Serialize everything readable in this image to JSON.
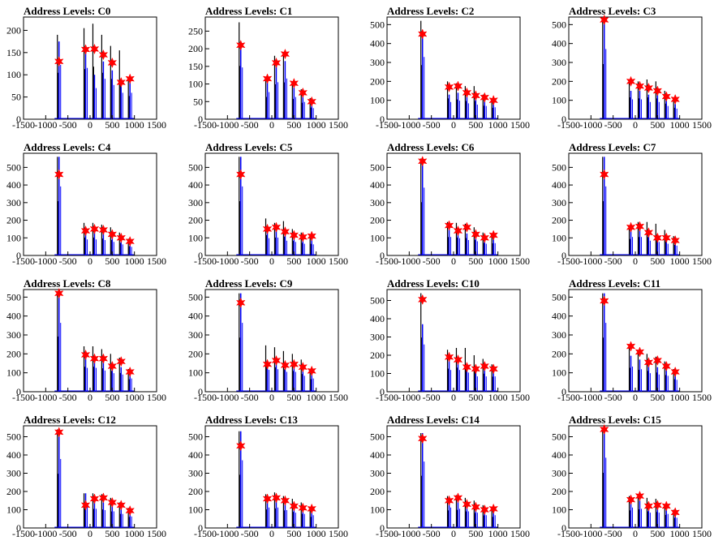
{
  "colors": {
    "histogram_black": "#000000",
    "histogram_blue": "#0000ff",
    "marker": "#ff0000"
  },
  "chart_data": [
    {
      "type": "bar",
      "title": "Address Levels: C0",
      "xlim": [
        -1500,
        1500
      ],
      "ylim": [
        0,
        230
      ],
      "xticks": [
        -1500,
        -1000,
        -500,
        0,
        500,
        1000,
        1500
      ],
      "yticks": [
        0,
        50,
        100,
        150,
        200
      ],
      "peaks_x": [
        -700,
        -100,
        100,
        300,
        500,
        700,
        900
      ],
      "black_heights": [
        190,
        205,
        215,
        190,
        165,
        155,
        95
      ],
      "blue_heights": [
        175,
        165,
        100,
        130,
        110,
        85,
        85
      ],
      "markers_y": [
        130,
        157,
        158,
        145,
        127,
        83,
        91
      ]
    },
    {
      "type": "bar",
      "title": "Address Levels: C1",
      "xlim": [
        -1500,
        1500
      ],
      "ylim": [
        0,
        290
      ],
      "xticks": [
        -1500,
        -1000,
        -500,
        0,
        500,
        1000,
        1500
      ],
      "yticks": [
        0,
        50,
        100,
        150,
        200,
        250
      ],
      "peaks_x": [
        -700,
        -100,
        100,
        300,
        500,
        700,
        900
      ],
      "black_heights": [
        275,
        115,
        180,
        190,
        105,
        85,
        60
      ],
      "blue_heights": [
        210,
        110,
        150,
        165,
        90,
        70,
        45
      ],
      "markers_y": [
        210,
        115,
        160,
        185,
        102,
        75,
        50
      ]
    },
    {
      "type": "bar",
      "title": "Address Levels: C2",
      "xlim": [
        -1500,
        1500
      ],
      "ylim": [
        0,
        540
      ],
      "xticks": [
        -1500,
        -1000,
        -500,
        0,
        500,
        1000,
        1500
      ],
      "yticks": [
        0,
        100,
        200,
        300,
        400,
        500
      ],
      "peaks_x": [
        -700,
        -100,
        100,
        300,
        500,
        700,
        900
      ],
      "black_heights": [
        520,
        200,
        190,
        175,
        175,
        130,
        110
      ],
      "blue_heights": [
        470,
        130,
        140,
        120,
        110,
        100,
        90
      ],
      "markers_y": [
        450,
        170,
        175,
        140,
        125,
        115,
        100
      ]
    },
    {
      "type": "bar",
      "title": "Address Levels: C3",
      "xlim": [
        -1500,
        1500
      ],
      "ylim": [
        0,
        540
      ],
      "xticks": [
        -1500,
        -1000,
        -500,
        0,
        500,
        1000,
        1500
      ],
      "yticks": [
        0,
        100,
        200,
        300,
        400,
        500
      ],
      "peaks_x": [
        -700,
        -100,
        100,
        300,
        500,
        700,
        900
      ],
      "black_heights": [
        530,
        210,
        200,
        210,
        200,
        150,
        110
      ],
      "blue_heights": [
        530,
        150,
        150,
        130,
        130,
        100,
        80
      ],
      "markers_y": [
        525,
        200,
        175,
        165,
        150,
        120,
        105
      ]
    },
    {
      "type": "bar",
      "title": "Address Levels: C4",
      "xlim": [
        -1500,
        1500
      ],
      "ylim": [
        0,
        580
      ],
      "xticks": [
        -1500,
        -1000,
        -500,
        0,
        500,
        1000,
        1500
      ],
      "yticks": [
        0,
        100,
        200,
        300,
        400,
        500
      ],
      "peaks_x": [
        -700,
        -100,
        100,
        300,
        500,
        700,
        900
      ],
      "black_heights": [
        560,
        185,
        185,
        175,
        160,
        130,
        95
      ],
      "blue_heights": [
        560,
        130,
        130,
        125,
        110,
        90,
        70
      ],
      "markers_y": [
        460,
        140,
        150,
        145,
        120,
        100,
        80
      ]
    },
    {
      "type": "bar",
      "title": "Address Levels: C5",
      "xlim": [
        -1500,
        1500
      ],
      "ylim": [
        0,
        580
      ],
      "xticks": [
        -1500,
        -1000,
        -500,
        0,
        500,
        1000,
        1500
      ],
      "yticks": [
        0,
        100,
        200,
        300,
        400,
        500
      ],
      "peaks_x": [
        -700,
        -100,
        100,
        300,
        500,
        700,
        900
      ],
      "black_heights": [
        560,
        210,
        185,
        195,
        150,
        130,
        120
      ],
      "blue_heights": [
        560,
        140,
        145,
        120,
        110,
        95,
        90
      ],
      "markers_y": [
        460,
        150,
        160,
        135,
        115,
        105,
        110
      ]
    },
    {
      "type": "bar",
      "title": "Address Levels: C6",
      "xlim": [
        -1500,
        1500
      ],
      "ylim": [
        0,
        580
      ],
      "xticks": [
        -1500,
        -1000,
        -500,
        0,
        500,
        1000,
        1500
      ],
      "yticks": [
        0,
        100,
        200,
        300,
        400,
        500
      ],
      "peaks_x": [
        -700,
        -100,
        100,
        300,
        500,
        700,
        900
      ],
      "black_heights": [
        550,
        190,
        185,
        180,
        160,
        130,
        125
      ],
      "blue_heights": [
        550,
        150,
        140,
        125,
        115,
        95,
        100
      ],
      "markers_y": [
        535,
        170,
        140,
        160,
        120,
        100,
        115
      ]
    },
    {
      "type": "bar",
      "title": "Address Levels: C7",
      "xlim": [
        -1500,
        1500
      ],
      "ylim": [
        0,
        580
      ],
      "xticks": [
        -1500,
        -1000,
        -500,
        0,
        500,
        1000,
        1500
      ],
      "yticks": [
        0,
        100,
        200,
        300,
        400,
        500
      ],
      "peaks_x": [
        -700,
        -100,
        100,
        300,
        500,
        700,
        900
      ],
      "black_heights": [
        560,
        170,
        190,
        190,
        180,
        145,
        110
      ],
      "blue_heights": [
        560,
        150,
        150,
        120,
        110,
        95,
        80
      ],
      "markers_y": [
        460,
        160,
        165,
        130,
        100,
        100,
        85
      ]
    },
    {
      "type": "bar",
      "title": "Address Levels: C8",
      "xlim": [
        -1500,
        1500
      ],
      "ylim": [
        0,
        540
      ],
      "xticks": [
        -1500,
        -1000,
        -500,
        0,
        500,
        1000,
        1500
      ],
      "yticks": [
        0,
        100,
        200,
        300,
        400,
        500
      ],
      "peaks_x": [
        -700,
        -100,
        100,
        300,
        500,
        700,
        900
      ],
      "black_heights": [
        530,
        240,
        240,
        225,
        200,
        180,
        120
      ],
      "blue_heights": [
        520,
        180,
        180,
        160,
        140,
        130,
        100
      ],
      "markers_y": [
        520,
        195,
        175,
        175,
        135,
        160,
        105
      ]
    },
    {
      "type": "bar",
      "title": "Address Levels: C9",
      "xlim": [
        -1500,
        1500
      ],
      "ylim": [
        0,
        540
      ],
      "xticks": [
        -1500,
        -1000,
        -500,
        0,
        500,
        1000,
        1500
      ],
      "yticks": [
        0,
        100,
        200,
        300,
        400,
        500
      ],
      "peaks_x": [
        -700,
        -100,
        100,
        300,
        500,
        700,
        900
      ],
      "black_heights": [
        520,
        245,
        235,
        215,
        200,
        170,
        120
      ],
      "blue_heights": [
        520,
        165,
        170,
        150,
        150,
        120,
        100
      ],
      "markers_y": [
        470,
        145,
        165,
        140,
        145,
        130,
        110
      ]
    },
    {
      "type": "bar",
      "title": "Address Levels: C10",
      "xlim": [
        -1500,
        1500
      ],
      "ylim": [
        0,
        560
      ],
      "xticks": [
        -1500,
        -1000,
        -500,
        0,
        500,
        1000,
        1500
      ],
      "yticks": [
        0,
        100,
        200,
        300,
        400,
        500
      ],
      "peaks_x": [
        -700,
        -100,
        100,
        300,
        500,
        700,
        900
      ],
      "black_heights": [
        540,
        230,
        240,
        240,
        200,
        180,
        150
      ],
      "blue_heights": [
        370,
        170,
        170,
        150,
        120,
        120,
        120
      ],
      "markers_y": [
        505,
        190,
        175,
        135,
        125,
        140,
        125
      ]
    },
    {
      "type": "bar",
      "title": "Address Levels: C11",
      "xlim": [
        -1500,
        1500
      ],
      "ylim": [
        0,
        540
      ],
      "xticks": [
        -1500,
        -1000,
        -500,
        0,
        500,
        1000,
        1500
      ],
      "yticks": [
        0,
        100,
        200,
        300,
        400,
        500
      ],
      "peaks_x": [
        -700,
        -100,
        100,
        300,
        500,
        700,
        900
      ],
      "black_heights": [
        520,
        230,
        210,
        200,
        185,
        160,
        120
      ],
      "blue_heights": [
        520,
        190,
        170,
        140,
        130,
        120,
        90
      ],
      "markers_y": [
        480,
        240,
        210,
        155,
        165,
        135,
        105
      ]
    },
    {
      "type": "bar",
      "title": "Address Levels: C12",
      "xlim": [
        -1500,
        1500
      ],
      "ylim": [
        0,
        560
      ],
      "xticks": [
        -1500,
        -1000,
        -500,
        0,
        500,
        1000,
        1500
      ],
      "yticks": [
        0,
        100,
        200,
        300,
        400,
        500
      ],
      "peaks_x": [
        -700,
        -100,
        100,
        300,
        500,
        700,
        900
      ],
      "black_heights": [
        540,
        190,
        190,
        185,
        165,
        140,
        110
      ],
      "blue_heights": [
        540,
        190,
        150,
        140,
        130,
        110,
        90
      ],
      "markers_y": [
        525,
        125,
        160,
        165,
        140,
        125,
        95
      ]
    },
    {
      "type": "bar",
      "title": "Address Levels: C13",
      "xlim": [
        -1500,
        1500
      ],
      "ylim": [
        0,
        560
      ],
      "xticks": [
        -1500,
        -1000,
        -500,
        0,
        500,
        1000,
        1500
      ],
      "yticks": [
        0,
        100,
        200,
        300,
        400,
        500
      ],
      "peaks_x": [
        -700,
        -100,
        100,
        300,
        500,
        700,
        900
      ],
      "black_heights": [
        530,
        185,
        195,
        175,
        160,
        140,
        110
      ],
      "blue_heights": [
        530,
        160,
        160,
        140,
        120,
        110,
        100
      ],
      "markers_y": [
        450,
        160,
        165,
        150,
        120,
        110,
        105
      ]
    },
    {
      "type": "bar",
      "title": "Address Levels: C14",
      "xlim": [
        -1500,
        1500
      ],
      "ylim": [
        0,
        560
      ],
      "xticks": [
        -1500,
        -1000,
        -500,
        0,
        500,
        1000,
        1500
      ],
      "yticks": [
        0,
        100,
        200,
        300,
        400,
        500
      ],
      "peaks_x": [
        -700,
        -100,
        100,
        300,
        500,
        700,
        900
      ],
      "black_heights": [
        520,
        175,
        180,
        165,
        150,
        125,
        110
      ],
      "blue_heights": [
        520,
        160,
        150,
        130,
        120,
        100,
        100
      ],
      "markers_y": [
        490,
        150,
        165,
        130,
        115,
        100,
        105
      ]
    },
    {
      "type": "bar",
      "title": "Address Levels: C15",
      "xlim": [
        -1500,
        1500
      ],
      "ylim": [
        0,
        560
      ],
      "xticks": [
        -1500,
        -1000,
        -500,
        0,
        500,
        1000,
        1500
      ],
      "yticks": [
        0,
        100,
        200,
        300,
        400,
        500
      ],
      "peaks_x": [
        -700,
        -100,
        100,
        300,
        500,
        700,
        900
      ],
      "black_heights": [
        550,
        175,
        185,
        165,
        160,
        130,
        100
      ],
      "blue_heights": [
        550,
        160,
        150,
        120,
        120,
        110,
        80
      ],
      "markers_y": [
        540,
        155,
        175,
        120,
        125,
        120,
        85
      ]
    }
  ]
}
